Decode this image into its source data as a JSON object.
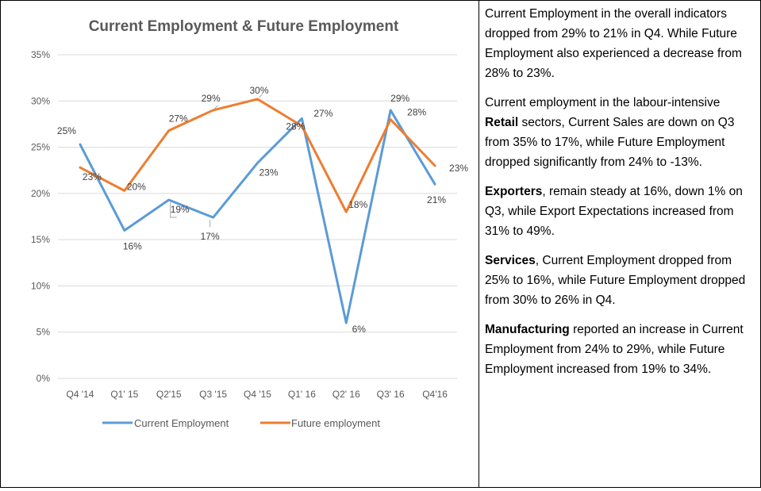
{
  "chart_data": {
    "type": "line",
    "title": "Current Employment & Future Employment",
    "categories": [
      "Q4 '14",
      "Q1' 15",
      "Q2'15",
      "Q3 '15",
      "Q4 '15",
      "Q1' 16",
      "Q2' 16",
      "Q3' 16",
      "Q4'16"
    ],
    "series": [
      {
        "name": "Current Employment",
        "color": "#5B9BD5",
        "values": [
          25.3,
          16.0,
          19.3,
          17.4,
          23.3,
          28.1,
          6.0,
          29.0,
          21.0
        ],
        "labels": [
          "25%",
          "16%",
          "19%",
          "17%",
          "23%",
          "28%",
          "6%",
          "29%",
          "21%"
        ]
      },
      {
        "name": "Future employment",
        "color": "#ED7D31",
        "values": [
          22.8,
          20.3,
          26.8,
          29.0,
          30.2,
          27.3,
          18.0,
          28.0,
          23.0
        ],
        "labels": [
          "23%",
          "20%",
          "27%",
          "29%",
          "30%",
          "27%",
          "18%",
          "28%",
          "23%"
        ]
      }
    ],
    "yticks": [
      "0%",
      "5%",
      "10%",
      "15%",
      "20%",
      "25%",
      "30%",
      "35%"
    ],
    "ylim": [
      0,
      35
    ],
    "grid": true,
    "legend": "bottom"
  },
  "commentary": {
    "p1": "Current Employment in the overall indicators dropped from 29% to 21% in Q4. While Future Employment also experienced a decrease from 28% to 23%.",
    "p2_before": "Current employment in the labour-intensive ",
    "p2_bold": "Retail",
    "p2_after": " sectors, Current Sales are down on Q3 from 35% to 17%, while Future Employment dropped significantly from 24% to -13%.",
    "p3_bold": "Exporters",
    "p3_after": ", remain steady at 16%, down 1% on Q3, while Export Expectations increased from 31% to 49%.",
    "p4_bold": "Services",
    "p4_after": ", Current Employment dropped from 25% to 16%, while Future Employment dropped from 30% to 26% in Q4.",
    "p5_bold": "Manufacturing",
    "p5_after": " reported an increase in Current Employment from 24% to 29%, while Future Employment increased from 19% to 34%."
  }
}
